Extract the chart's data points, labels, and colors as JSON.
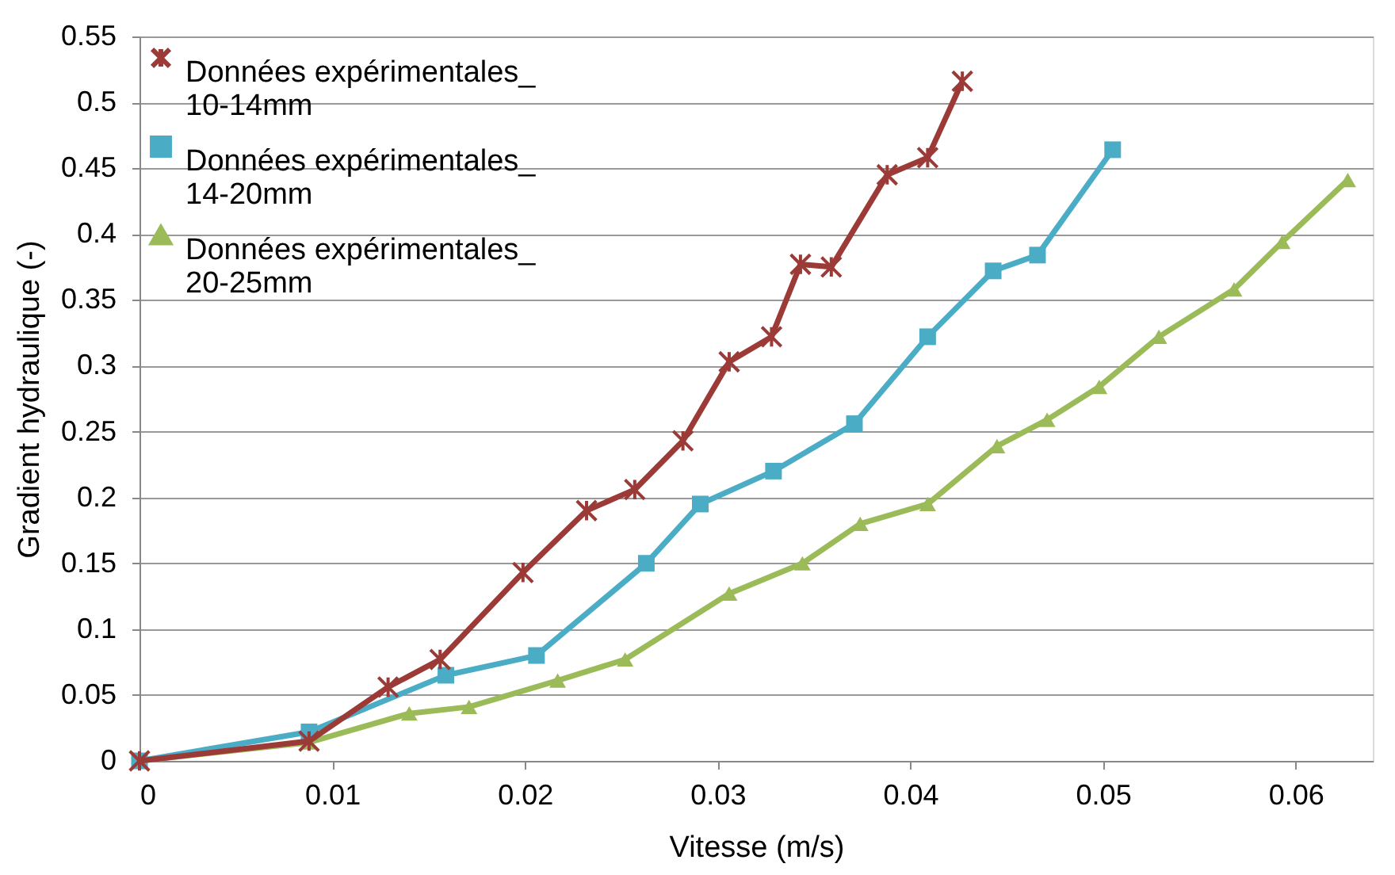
{
  "chart_data": {
    "type": "line",
    "xlabel": "Vitesse (m/s)",
    "ylabel": "Gradient hydraulique (-)",
    "xlim": [
      0,
      0.064
    ],
    "xticks": [
      0,
      0.01,
      0.02,
      0.03,
      0.04,
      0.05,
      0.06
    ],
    "ylim": [
      0,
      0.55
    ],
    "yticks": [
      0,
      0.05,
      0.1,
      0.15,
      0.2,
      0.25,
      0.3,
      0.35,
      0.4,
      0.45,
      0.5,
      0.55
    ],
    "grid": "y",
    "legend": "top left",
    "series": [
      {
        "name": "Données expérimentales_10-14mm",
        "color": "#9b3a36",
        "marker": "cross",
        "x": [
          0,
          0.0088,
          0.0129,
          0.0156,
          0.0199,
          0.0232,
          0.0257,
          0.0282,
          0.0306,
          0.0328,
          0.0343,
          0.0359,
          0.0388,
          0.0409,
          0.0427
        ],
        "values": [
          0,
          0.015,
          0.056,
          0.077,
          0.143,
          0.19,
          0.206,
          0.243,
          0.303,
          0.322,
          0.377,
          0.375,
          0.445,
          0.458,
          0.516
        ]
      },
      {
        "name": "Données expérimentales_14-20mm",
        "color": "#4bacc6",
        "marker": "square",
        "x": [
          0,
          0.0088,
          0.0159,
          0.0206,
          0.0263,
          0.0291,
          0.0329,
          0.0371,
          0.0409,
          0.0443,
          0.0466,
          0.0505
        ],
        "values": [
          0,
          0.022,
          0.065,
          0.08,
          0.15,
          0.195,
          0.22,
          0.256,
          0.322,
          0.372,
          0.384,
          0.464
        ]
      },
      {
        "name": "Données expérimentales_20-25mm",
        "color": "#9bbb59",
        "marker": "triangle",
        "x": [
          0,
          0.0088,
          0.014,
          0.0171,
          0.0217,
          0.0252,
          0.0306,
          0.0344,
          0.0374,
          0.0409,
          0.0445,
          0.0471,
          0.0498,
          0.0529,
          0.0568,
          0.0593,
          0.0627
        ],
        "values": [
          0,
          0.014,
          0.036,
          0.041,
          0.061,
          0.077,
          0.127,
          0.15,
          0.18,
          0.195,
          0.239,
          0.259,
          0.284,
          0.322,
          0.358,
          0.394,
          0.441
        ]
      }
    ]
  }
}
